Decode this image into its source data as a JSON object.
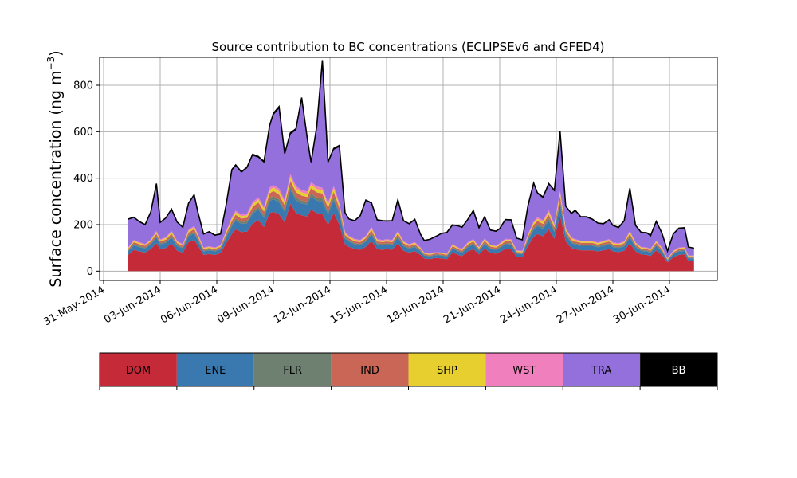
{
  "chart_data": {
    "type": "area",
    "stacked": true,
    "title": "Source contribution to BC concentrations (ECLIPSEv6 and GFED4)",
    "ylabel": "Surface concentration (ng m",
    "ylabel_superscript": "−3",
    "ylabel_close": ")",
    "ylim": [
      -40,
      920
    ],
    "yticks": [
      0,
      200,
      400,
      600,
      800
    ],
    "ytick_labels": [
      "0",
      "200",
      "400",
      "600",
      "800"
    ],
    "xlim": [
      "2014-05-31T00:00",
      "2014-07-03T00:00"
    ],
    "xtick_labels": [
      "31-May-2014",
      "03-Jun-2014",
      "06-Jun-2014",
      "09-Jun-2014",
      "12-Jun-2014",
      "15-Jun-2014",
      "18-Jun-2014",
      "21-Jun-2014",
      "24-Jun-2014",
      "27-Jun-2014",
      "30-Jun-2014"
    ],
    "xtick_days": [
      0,
      3,
      6,
      9,
      12,
      15,
      18,
      21,
      24,
      27,
      30
    ],
    "grid": true,
    "legend_position": "below",
    "colors": {
      "DOM": "#c42a38",
      "ENE": "#3a78b0",
      "FLR": "#6e8070",
      "IND": "#c96656",
      "SHP": "#e6cf2e",
      "WST": "#f07fbd",
      "TRA": "#9370db",
      "BB": "#000000"
    },
    "x_days": [
      1.3,
      1.6,
      1.9,
      2.2,
      2.5,
      2.8,
      3.0,
      3.3,
      3.6,
      3.9,
      4.2,
      4.5,
      4.8,
      5.0,
      5.3,
      5.6,
      5.9,
      6.2,
      6.5,
      6.8,
      7.0,
      7.3,
      7.6,
      7.9,
      8.2,
      8.5,
      8.8,
      9.0,
      9.3,
      9.6,
      9.9,
      10.2,
      10.5,
      10.8,
      11.0,
      11.3,
      11.6,
      11.9,
      12.2,
      12.5,
      12.8,
      13.0,
      13.3,
      13.6,
      13.9,
      14.2,
      14.5,
      14.8,
      15.0,
      15.3,
      15.6,
      15.9,
      16.2,
      16.5,
      16.8,
      17.0,
      17.3,
      17.6,
      17.9,
      18.2,
      18.5,
      18.8,
      19.0,
      19.3,
      19.6,
      19.9,
      20.2,
      20.5,
      20.8,
      21.0,
      21.3,
      21.6,
      21.9,
      22.2,
      22.5,
      22.8,
      23.0,
      23.3,
      23.6,
      23.9,
      24.2,
      24.5,
      24.8,
      25.0,
      25.3,
      25.6,
      25.9,
      26.2,
      26.5,
      26.8,
      27.0,
      27.3,
      27.6,
      27.9,
      28.2,
      28.5,
      28.8,
      29.0,
      29.3,
      29.6,
      29.9,
      30.2,
      30.5,
      30.8,
      31.0,
      31.3
    ],
    "series": [
      {
        "name": "DOM",
        "values": [
          70,
          92,
          85,
          80,
          95,
          120,
          95,
          100,
          120,
          88,
          80,
          125,
          135,
          110,
          70,
          74,
          70,
          78,
          120,
          160,
          180,
          168,
          170,
          205,
          220,
          190,
          250,
          255,
          245,
          210,
          290,
          250,
          240,
          235,
          265,
          250,
          245,
          200,
          250,
          200,
          115,
          105,
          96,
          92,
          105,
          130,
          95,
          92,
          95,
          92,
          120,
          88,
          80,
          86,
          70,
          55,
          52,
          57,
          55,
          52,
          80,
          70,
          65,
          85,
          95,
          72,
          98,
          78,
          76,
          82,
          96,
          95,
          62,
          60,
          110,
          148,
          160,
          150,
          180,
          140,
          240,
          128,
          100,
          95,
          90,
          90,
          90,
          85,
          90,
          95,
          85,
          82,
          88,
          120,
          85,
          72,
          70,
          65,
          90,
          70,
          38,
          60,
          70,
          72,
          45,
          45
        ]
      },
      {
        "name": "ENE",
        "values": [
          15,
          20,
          18,
          17,
          20,
          25,
          20,
          22,
          25,
          20,
          18,
          25,
          28,
          23,
          15,
          16,
          15,
          16,
          25,
          34,
          38,
          35,
          36,
          43,
          46,
          40,
          52,
          55,
          52,
          45,
          60,
          55,
          52,
          52,
          56,
          54,
          55,
          45,
          56,
          45,
          25,
          22,
          20,
          20,
          22,
          28,
          20,
          20,
          20,
          20,
          25,
          19,
          17,
          18,
          15,
          12,
          11,
          12,
          12,
          11,
          17,
          15,
          14,
          18,
          20,
          15,
          20,
          17,
          16,
          18,
          20,
          20,
          13,
          13,
          23,
          30,
          34,
          32,
          38,
          30,
          50,
          27,
          21,
          20,
          19,
          19,
          19,
          18,
          19,
          20,
          18,
          18,
          19,
          25,
          18,
          15,
          15,
          14,
          19,
          15,
          8,
          13,
          15,
          15,
          10,
          10
        ]
      },
      {
        "name": "FLR",
        "values": [
          4,
          5,
          5,
          5,
          5,
          6,
          5,
          5,
          6,
          5,
          4,
          6,
          7,
          6,
          4,
          4,
          4,
          4,
          6,
          8,
          9,
          8,
          9,
          10,
          11,
          10,
          12,
          13,
          12,
          11,
          14,
          13,
          12,
          12,
          13,
          13,
          13,
          11,
          13,
          11,
          6,
          6,
          5,
          5,
          6,
          7,
          5,
          5,
          5,
          5,
          6,
          5,
          4,
          5,
          4,
          3,
          3,
          3,
          3,
          3,
          4,
          4,
          4,
          5,
          5,
          4,
          5,
          4,
          4,
          4,
          5,
          5,
          3,
          3,
          6,
          8,
          8,
          8,
          9,
          7,
          12,
          7,
          5,
          5,
          5,
          5,
          5,
          5,
          5,
          5,
          5,
          4,
          5,
          6,
          5,
          4,
          4,
          4,
          5,
          4,
          2,
          3,
          4,
          4,
          3,
          3
        ]
      },
      {
        "name": "IND",
        "values": [
          6,
          8,
          8,
          7,
          8,
          10,
          8,
          9,
          10,
          8,
          7,
          10,
          11,
          10,
          6,
          6,
          6,
          7,
          10,
          14,
          16,
          15,
          15,
          18,
          19,
          17,
          21,
          22,
          21,
          18,
          25,
          22,
          21,
          20,
          23,
          22,
          21,
          17,
          22,
          17,
          10,
          9,
          8,
          8,
          9,
          11,
          8,
          8,
          8,
          8,
          10,
          8,
          7,
          7,
          6,
          5,
          4,
          5,
          5,
          4,
          7,
          6,
          6,
          7,
          8,
          6,
          8,
          7,
          6,
          7,
          8,
          8,
          5,
          5,
          9,
          13,
          14,
          13,
          16,
          12,
          21,
          11,
          9,
          8,
          8,
          8,
          8,
          7,
          8,
          8,
          7,
          7,
          8,
          10,
          7,
          6,
          6,
          6,
          8,
          6,
          3,
          5,
          6,
          6,
          4,
          4
        ]
      },
      {
        "name": "SHP",
        "values": [
          4,
          5,
          5,
          4,
          5,
          7,
          5,
          6,
          7,
          5,
          4,
          7,
          8,
          6,
          4,
          4,
          4,
          4,
          7,
          9,
          10,
          10,
          10,
          12,
          13,
          11,
          14,
          15,
          14,
          12,
          17,
          15,
          14,
          14,
          15,
          15,
          14,
          12,
          15,
          12,
          7,
          6,
          6,
          5,
          6,
          8,
          6,
          5,
          6,
          5,
          7,
          5,
          5,
          5,
          4,
          3,
          3,
          3,
          3,
          3,
          5,
          4,
          4,
          5,
          6,
          4,
          6,
          5,
          4,
          5,
          6,
          6,
          4,
          4,
          6,
          9,
          9,
          9,
          11,
          8,
          14,
          7,
          6,
          6,
          5,
          5,
          5,
          5,
          5,
          6,
          5,
          5,
          5,
          7,
          5,
          4,
          4,
          4,
          5,
          4,
          2,
          4,
          4,
          4,
          3,
          3
        ]
      },
      {
        "name": "WST",
        "values": [
          3,
          4,
          4,
          4,
          4,
          5,
          4,
          4,
          5,
          4,
          3,
          5,
          6,
          5,
          3,
          3,
          3,
          3,
          5,
          7,
          8,
          7,
          7,
          9,
          9,
          8,
          11,
          11,
          11,
          9,
          12,
          11,
          10,
          10,
          11,
          11,
          11,
          9,
          11,
          9,
          5,
          4,
          4,
          4,
          4,
          6,
          4,
          4,
          4,
          4,
          5,
          4,
          3,
          4,
          3,
          2,
          2,
          2,
          2,
          2,
          3,
          3,
          3,
          4,
          4,
          3,
          4,
          3,
          3,
          4,
          4,
          4,
          3,
          3,
          5,
          6,
          7,
          7,
          8,
          6,
          10,
          6,
          4,
          4,
          4,
          4,
          4,
          4,
          4,
          4,
          4,
          4,
          4,
          5,
          4,
          3,
          3,
          3,
          4,
          3,
          2,
          3,
          3,
          3,
          2,
          2
        ]
      },
      {
        "name": "TRA",
        "values": [
          120,
          95,
          85,
          80,
          115,
          200,
          70,
          80,
          90,
          78,
          70,
          110,
          130,
          90,
          55,
          60,
          50,
          45,
          110,
          200,
          190,
          180,
          195,
          200,
          170,
          190,
          260,
          300,
          345,
          195,
          170,
          240,
          390,
          220,
          80,
          250,
          540,
          170,
          155,
          240,
          80,
          70,
          75,
          100,
          150,
          100,
          80,
          80,
          75,
          80,
          130,
          85,
          85,
          95,
          55,
          50,
          60,
          65,
          80,
          90,
          80,
          90,
          90,
          95,
          120,
          80,
          90,
          60,
          60,
          60,
          80,
          80,
          50,
          45,
          120,
          160,
          100,
          95,
          110,
          140,
          250,
          90,
          100,
          120,
          100,
          100,
          90,
          80,
          70,
          80,
          70,
          65,
          85,
          180,
          70,
          60,
          60,
          55,
          80,
          60,
          30,
          70,
          80,
          80,
          35,
          30
        ]
      },
      {
        "name": "BB",
        "values": [
          2,
          3,
          3,
          3,
          3,
          4,
          3,
          3,
          4,
          3,
          3,
          4,
          4,
          4,
          3,
          3,
          3,
          3,
          4,
          5,
          6,
          5,
          5,
          6,
          6,
          6,
          7,
          8,
          8,
          6,
          7,
          7,
          8,
          7,
          6,
          7,
          9,
          6,
          6,
          7,
          4,
          3,
          3,
          4,
          4,
          4,
          3,
          3,
          3,
          3,
          4,
          3,
          3,
          3,
          2,
          2,
          2,
          2,
          2,
          2,
          3,
          3,
          3,
          3,
          3,
          3,
          3,
          3,
          3,
          3,
          3,
          3,
          2,
          2,
          4,
          5,
          5,
          5,
          5,
          5,
          6,
          4,
          4,
          4,
          3,
          3,
          3,
          3,
          3,
          3,
          3,
          3,
          3,
          4,
          3,
          3,
          3,
          2,
          3,
          2,
          2,
          2,
          3,
          3,
          2,
          2
        ]
      }
    ]
  }
}
